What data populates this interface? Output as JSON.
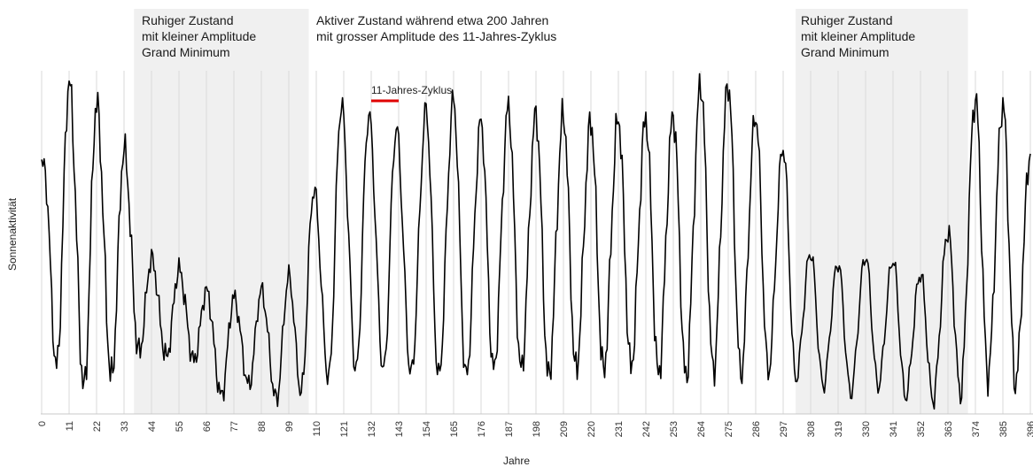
{
  "chart_data": {
    "type": "line",
    "title": "",
    "xlabel": "Jahre",
    "ylabel": "Sonnenaktivität",
    "xlim": [
      0,
      396
    ],
    "x_ticks": [
      0,
      11,
      22,
      33,
      44,
      55,
      66,
      77,
      88,
      99,
      110,
      121,
      132,
      143,
      154,
      165,
      176,
      187,
      198,
      209,
      220,
      231,
      242,
      253,
      264,
      275,
      286,
      297,
      308,
      319,
      330,
      341,
      352,
      363,
      374,
      385,
      396
    ],
    "y_ticks_shown": false,
    "grid": "vertical",
    "series_color": "#000000",
    "shaded_regions": [
      {
        "x_start": 37,
        "x_end": 107,
        "label_lines": [
          "Ruhiger Zustand",
          "mit kleiner Amplitude",
          "Grand Minimum"
        ]
      },
      {
        "x_start": 302,
        "x_end": 371,
        "label_lines": [
          "Ruhiger Zustand",
          "mit kleiner Amplitude",
          "Grand Minimum"
        ]
      }
    ],
    "active_label_lines": [
      "Aktiver Zustand während etwa 200 Jahren",
      "mit grosser Amplitude des 11-Jahres-Zyklus"
    ],
    "cycle_marker": {
      "label": "11-Jahres-Zyklus",
      "x_start": 132,
      "x_end": 143,
      "color": "#e00000"
    },
    "peaks": [
      {
        "x": 1,
        "y": 0.7
      },
      {
        "x": 11,
        "y": 0.94
      },
      {
        "x": 22,
        "y": 0.88
      },
      {
        "x": 33,
        "y": 0.75
      },
      {
        "x": 44,
        "y": 0.44
      },
      {
        "x": 55,
        "y": 0.41
      },
      {
        "x": 66,
        "y": 0.35
      },
      {
        "x": 77,
        "y": 0.33
      },
      {
        "x": 88,
        "y": 0.35
      },
      {
        "x": 99,
        "y": 0.39
      },
      {
        "x": 109,
        "y": 0.64
      },
      {
        "x": 120,
        "y": 0.88
      },
      {
        "x": 131,
        "y": 0.85
      },
      {
        "x": 142,
        "y": 0.81
      },
      {
        "x": 154,
        "y": 0.86
      },
      {
        "x": 165,
        "y": 0.89
      },
      {
        "x": 176,
        "y": 0.83
      },
      {
        "x": 187,
        "y": 0.87
      },
      {
        "x": 198,
        "y": 0.85
      },
      {
        "x": 209,
        "y": 0.85
      },
      {
        "x": 220,
        "y": 0.83
      },
      {
        "x": 231,
        "y": 0.84
      },
      {
        "x": 242,
        "y": 0.84
      },
      {
        "x": 253,
        "y": 0.85
      },
      {
        "x": 264,
        "y": 0.94
      },
      {
        "x": 275,
        "y": 0.94
      },
      {
        "x": 286,
        "y": 0.85
      },
      {
        "x": 297,
        "y": 0.76
      },
      {
        "x": 308,
        "y": 0.46
      },
      {
        "x": 319,
        "y": 0.43
      },
      {
        "x": 330,
        "y": 0.45
      },
      {
        "x": 341,
        "y": 0.44
      },
      {
        "x": 352,
        "y": 0.4
      },
      {
        "x": 363,
        "y": 0.52
      },
      {
        "x": 374,
        "y": 0.9
      },
      {
        "x": 385,
        "y": 0.88
      },
      {
        "x": 396,
        "y": 0.74
      }
    ],
    "troughs": [
      {
        "x": 6,
        "y": 0.13
      },
      {
        "x": 17,
        "y": 0.07
      },
      {
        "x": 28,
        "y": 0.1
      },
      {
        "x": 39,
        "y": 0.17
      },
      {
        "x": 50,
        "y": 0.16
      },
      {
        "x": 61,
        "y": 0.15
      },
      {
        "x": 72,
        "y": 0.05
      },
      {
        "x": 83,
        "y": 0.08
      },
      {
        "x": 94,
        "y": 0.04
      },
      {
        "x": 104,
        "y": 0.06
      },
      {
        "x": 115,
        "y": 0.1
      },
      {
        "x": 126,
        "y": 0.12
      },
      {
        "x": 137,
        "y": 0.12
      },
      {
        "x": 148,
        "y": 0.11
      },
      {
        "x": 159,
        "y": 0.1
      },
      {
        "x": 170,
        "y": 0.1
      },
      {
        "x": 181,
        "y": 0.12
      },
      {
        "x": 192,
        "y": 0.12
      },
      {
        "x": 203,
        "y": 0.1
      },
      {
        "x": 214,
        "y": 0.12
      },
      {
        "x": 225,
        "y": 0.12
      },
      {
        "x": 236,
        "y": 0.13
      },
      {
        "x": 247,
        "y": 0.11
      },
      {
        "x": 258,
        "y": 0.1
      },
      {
        "x": 269,
        "y": 0.12
      },
      {
        "x": 280,
        "y": 0.11
      },
      {
        "x": 291,
        "y": 0.12
      },
      {
        "x": 302,
        "y": 0.1
      },
      {
        "x": 313,
        "y": 0.08
      },
      {
        "x": 324,
        "y": 0.06
      },
      {
        "x": 335,
        "y": 0.08
      },
      {
        "x": 346,
        "y": 0.05
      },
      {
        "x": 357,
        "y": 0.04
      },
      {
        "x": 368,
        "y": 0.06
      },
      {
        "x": 379,
        "y": 0.11
      },
      {
        "x": 390,
        "y": 0.09
      }
    ]
  }
}
